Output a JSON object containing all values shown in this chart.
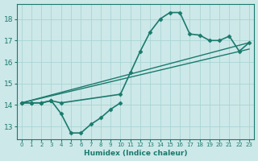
{
  "xlabel": "Humidex (Indice chaleur)",
  "bg_color": "#cde8e8",
  "grid_color": "#b0d8d8",
  "line_color": "#1a7a6e",
  "xlim": [
    -0.5,
    23.5
  ],
  "ylim": [
    12.4,
    18.7
  ],
  "yticks": [
    13,
    14,
    15,
    16,
    17,
    18
  ],
  "xticks": [
    0,
    1,
    2,
    3,
    4,
    5,
    6,
    7,
    8,
    9,
    10,
    11,
    12,
    13,
    14,
    15,
    16,
    17,
    18,
    19,
    20,
    21,
    22,
    23
  ],
  "lines": [
    {
      "x": [
        0,
        1,
        2,
        3,
        4,
        10,
        11,
        12,
        13,
        14,
        15,
        16,
        17,
        18,
        19,
        20,
        21,
        22,
        23
      ],
      "y": [
        14.1,
        14.1,
        14.1,
        14.2,
        14.1,
        14.5,
        15.5,
        16.5,
        17.4,
        18.0,
        18.3,
        18.3,
        17.3,
        17.25,
        17.0,
        17.0,
        17.2,
        16.5,
        16.9
      ],
      "marker": "D",
      "markersize": 2.5,
      "linewidth": 1.2
    },
    {
      "x": [
        0,
        1,
        2,
        3,
        4,
        5,
        6,
        7,
        8,
        9,
        10
      ],
      "y": [
        14.1,
        14.1,
        14.1,
        14.2,
        13.6,
        12.7,
        12.7,
        13.1,
        13.4,
        13.8,
        14.1
      ],
      "marker": "D",
      "markersize": 2.5,
      "linewidth": 1.2
    },
    {
      "x": [
        0,
        23
      ],
      "y": [
        14.1,
        16.9
      ],
      "marker": null,
      "markersize": 0,
      "linewidth": 1.0
    },
    {
      "x": [
        0,
        23
      ],
      "y": [
        14.1,
        16.6
      ],
      "marker": null,
      "markersize": 0,
      "linewidth": 1.0
    }
  ]
}
